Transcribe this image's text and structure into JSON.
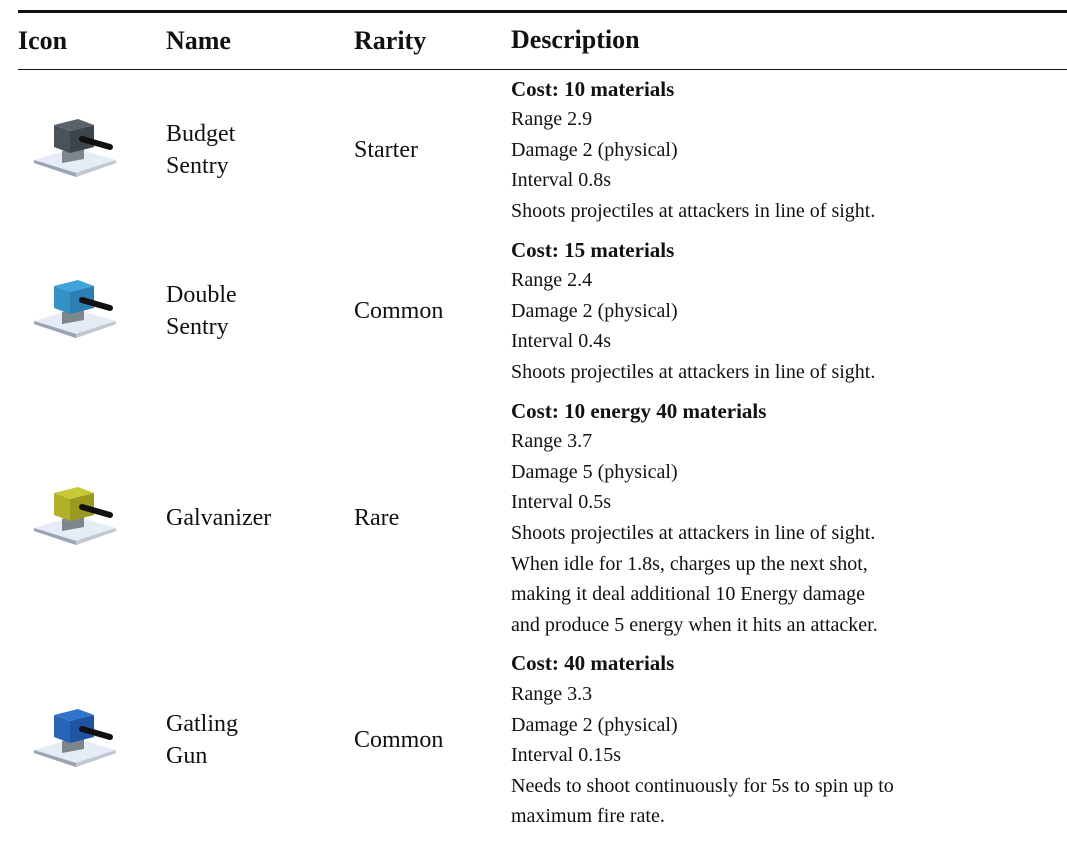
{
  "header": {
    "columns": [
      "Icon",
      "Name",
      "Rarity",
      "Description"
    ]
  },
  "table": {
    "rows": [
      {
        "name": [
          "Budget",
          "Sentry"
        ],
        "rarity": "Starter",
        "cost": "Cost: 10 materials",
        "lines": [
          "Range 2.9",
          "Damage 2 (physical)",
          "Interval 0.8s",
          "Shoots projectiles at attackers in line of sight."
        ]
      },
      {
        "name": [
          "Double",
          "Sentry"
        ],
        "rarity": "Common",
        "cost": "Cost: 15 materials",
        "lines": [
          "Range 2.4",
          "Damage 2 (physical)",
          "Interval 0.4s",
          "Shoots projectiles at attackers in line of sight."
        ]
      },
      {
        "name": [
          "Galvanizer"
        ],
        "rarity": "Rare",
        "cost": "Cost: 10 energy 40 materials",
        "lines": [
          "Range 3.7",
          "Damage 5 (physical)",
          "Interval 0.5s",
          "Shoots projectiles at attackers in line of sight.",
          "When idle for 1.8s, charges up the next shot,",
          "making it deal additional 10 Energy damage",
          "and produce 5 energy when it hits an attacker."
        ]
      },
      {
        "name": [
          "Gatling",
          "Gun"
        ],
        "rarity": "Common",
        "cost": "Cost: 40 materials",
        "lines": [
          "Range 3.3",
          "Damage 2 (physical)",
          "Interval 0.15s",
          "Needs to shoot continuously for 5s to spin up to",
          "maximum fire rate."
        ]
      }
    ]
  }
}
